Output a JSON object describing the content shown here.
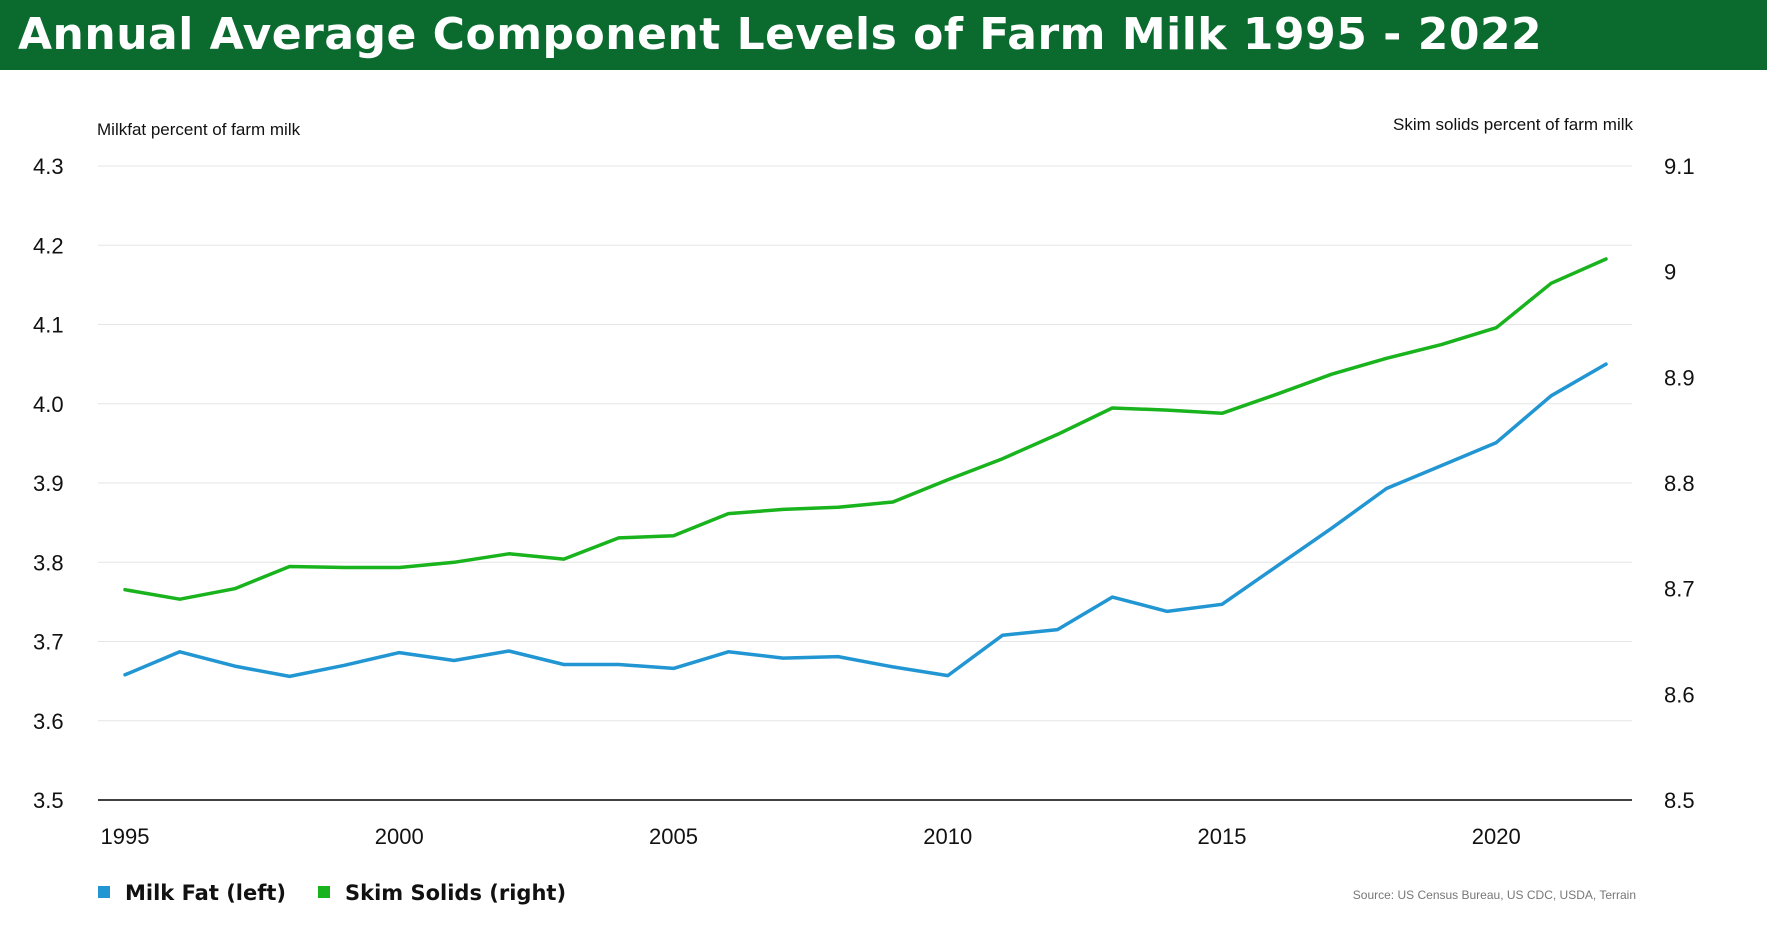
{
  "header": {
    "title": "Annual Average Component Levels of Farm Milk 1995 - 2022"
  },
  "colors": {
    "title_bar": "#0b6b2e",
    "milk_fat": "#2196d3",
    "skim_solids": "#19b31d",
    "grid": "#e6e6e6",
    "axis": "#000000"
  },
  "chart_data": {
    "type": "line",
    "title": "Annual Average Component Levels of Farm Milk 1995 - 2022",
    "ylabel_left": "Milkfat percent of farm milk",
    "ylabel_right": "Skim solids percent of farm milk",
    "ylim_left": [
      3.5,
      4.3
    ],
    "ylim_right": [
      8.5,
      9.1
    ],
    "yticks_left": [
      "4.3",
      "4.2",
      "4.1",
      "4.0",
      "3.9",
      "3.8",
      "3.7",
      "3.6",
      "3.5"
    ],
    "yticks_right": [
      "9.1",
      "9",
      "8.9",
      "8.8",
      "8.7",
      "8.6",
      "8.5"
    ],
    "xticks": [
      "1995",
      "2000",
      "2005",
      "2010",
      "2015",
      "2020"
    ],
    "xlim": [
      1995,
      2023.5
    ],
    "x": [
      1995,
      1996,
      1997,
      1998,
      1999,
      2000,
      2001,
      2002,
      2003,
      2004,
      2005,
      2006,
      2007,
      2008,
      2009,
      2010,
      2011,
      2012,
      2013,
      2014,
      2015,
      2016,
      2017,
      2018,
      2019,
      2020,
      2021,
      2022
    ],
    "grid": true,
    "legend_position": "bottom-left",
    "series": [
      {
        "name": "Milk Fat (left)",
        "axis": "left",
        "values": [
          3.658,
          3.687,
          3.669,
          3.656,
          3.67,
          3.686,
          3.676,
          3.688,
          3.671,
          3.671,
          3.666,
          3.687,
          3.679,
          3.681,
          3.668,
          3.657,
          3.708,
          3.715,
          3.756,
          3.738,
          3.747,
          3.795,
          3.843,
          3.893,
          3.922,
          3.951,
          4.01,
          4.05
        ]
      },
      {
        "name": "Skim Solids (right)",
        "axis": "right",
        "values": [
          8.699,
          8.69,
          8.7,
          8.721,
          8.72,
          8.72,
          8.725,
          8.733,
          8.728,
          8.748,
          8.75,
          8.771,
          8.775,
          8.777,
          8.782,
          8.803,
          8.823,
          8.846,
          8.871,
          8.869,
          8.866,
          8.884,
          8.903,
          8.918,
          8.931,
          8.947,
          8.989,
          9.012
        ]
      }
    ],
    "source": "Source: US Census Bureau, US CDC, USDA, Terrain"
  }
}
